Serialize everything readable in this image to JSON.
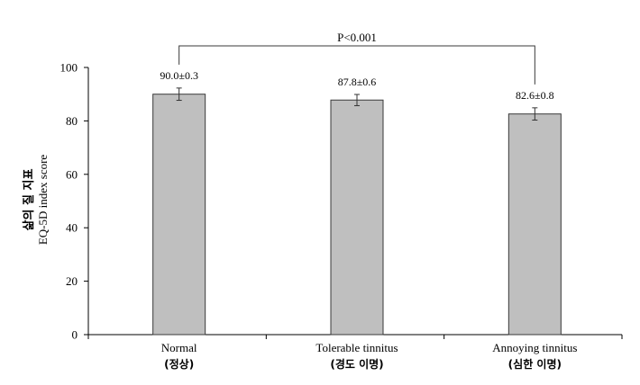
{
  "chart_data": {
    "type": "bar",
    "categories": [
      "Normal",
      "Tolerable tinnitus",
      "Annoying tinnitus"
    ],
    "categories_ko": [
      "(정상)",
      "(경도 이명)",
      "(심한 이명)"
    ],
    "values": [
      90.0,
      87.8,
      82.6
    ],
    "errors": [
      2.3,
      2.1,
      2.3
    ],
    "data_labels": [
      "90.0±0.3",
      "87.8±0.6",
      "82.6±0.8"
    ],
    "ylabel_ko": "삶의 질 지표",
    "ylabel": "EQ-5D index score",
    "ylim": [
      0,
      100
    ],
    "yticks": [
      0,
      20,
      40,
      60,
      80,
      100
    ],
    "significance": {
      "from": 0,
      "to": 2,
      "label": "P<0.001"
    },
    "grid": false,
    "colors": {
      "bar_fill": "#bfbfbf",
      "bar_stroke": "#3a3a3a",
      "axis": "#000000",
      "text": "#000000"
    }
  }
}
